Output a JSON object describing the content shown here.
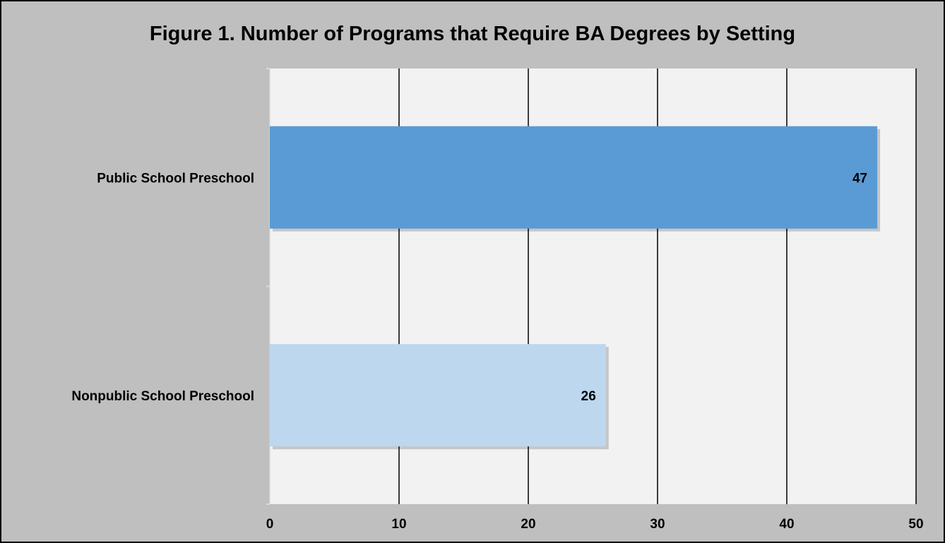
{
  "chart_data": {
    "type": "bar",
    "orientation": "horizontal",
    "title": "Figure 1. Number of Programs that Require BA Degrees by Setting",
    "categories": [
      "Public School Preschool",
      "Nonpublic School Preschool"
    ],
    "values": [
      47,
      26
    ],
    "data_labels": [
      "47",
      "26"
    ],
    "bar_colors": [
      "#5b9bd5",
      "#bdd7ee"
    ],
    "xlabel": "",
    "ylabel": "",
    "xlim": [
      0,
      50
    ],
    "x_ticks": [
      0,
      10,
      20,
      30,
      40,
      50
    ],
    "x_tick_labels": [
      "0",
      "10",
      "20",
      "30",
      "40",
      "50"
    ],
    "grid": true,
    "legend": "none",
    "colors": {
      "plot_background": "#f2f2f2",
      "figure_background": "#bfbfbf",
      "gridline": "#000000"
    }
  }
}
